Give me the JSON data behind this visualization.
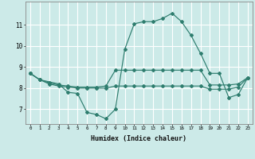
{
  "xlabel": "Humidex (Indice chaleur)",
  "bg_color": "#cceae8",
  "grid_color": "#ffffff",
  "line_color": "#2e7d6e",
  "line_high_x": [
    0,
    1,
    3,
    4,
    5,
    6,
    7,
    8,
    9,
    10,
    11,
    12,
    13,
    14,
    15,
    16,
    17,
    18,
    19,
    20,
    21,
    22,
    23
  ],
  "line_high_y": [
    8.7,
    8.4,
    8.2,
    7.8,
    7.75,
    6.85,
    6.75,
    6.55,
    7.0,
    9.85,
    11.05,
    11.15,
    11.15,
    11.3,
    11.55,
    11.15,
    10.5,
    9.65,
    8.7,
    8.7,
    7.55,
    7.7,
    8.5
  ],
  "line_mid_x": [
    0,
    1,
    2,
    3,
    4,
    5,
    6,
    7,
    8,
    9,
    10,
    11,
    12,
    13,
    14,
    15,
    16,
    17,
    18,
    19,
    20,
    21,
    22,
    23
  ],
  "line_mid_y": [
    8.7,
    8.4,
    8.25,
    8.15,
    8.1,
    8.05,
    8.05,
    8.05,
    8.1,
    8.85,
    8.85,
    8.85,
    8.85,
    8.85,
    8.85,
    8.85,
    8.85,
    8.85,
    8.85,
    8.15,
    8.15,
    8.15,
    8.2,
    8.5
  ],
  "line_low_x": [
    0,
    1,
    2,
    3,
    4,
    5,
    6,
    7,
    8,
    9,
    10,
    11,
    12,
    13,
    14,
    15,
    16,
    17,
    18,
    19,
    20,
    21,
    22,
    23
  ],
  "line_low_y": [
    8.7,
    8.4,
    8.2,
    8.1,
    8.05,
    8.0,
    8.0,
    8.0,
    8.0,
    8.1,
    8.1,
    8.1,
    8.1,
    8.1,
    8.1,
    8.1,
    8.1,
    8.1,
    8.1,
    7.95,
    7.95,
    7.95,
    8.05,
    8.5
  ],
  "xlim": [
    -0.5,
    23.5
  ],
  "ylim": [
    6.3,
    12.1
  ],
  "yticks": [
    7,
    8,
    9,
    10,
    11
  ],
  "xticks": [
    0,
    1,
    2,
    3,
    4,
    5,
    6,
    7,
    8,
    9,
    10,
    11,
    12,
    13,
    14,
    15,
    16,
    17,
    18,
    19,
    20,
    21,
    22,
    23
  ]
}
